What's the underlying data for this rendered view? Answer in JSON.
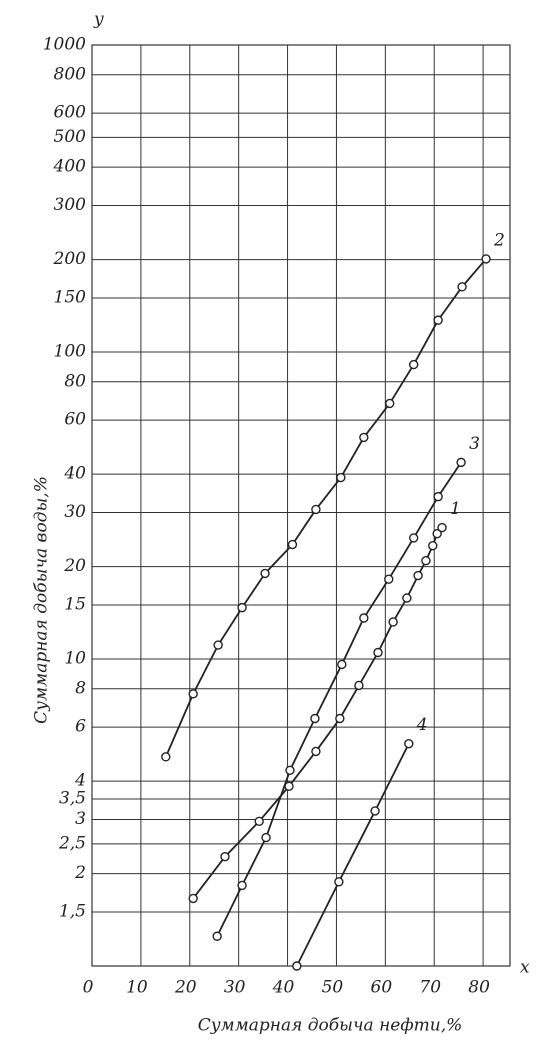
{
  "chart_data": {
    "type": "line",
    "y_scale": "log",
    "grid": true,
    "color": "#222222",
    "x_label": "Суммарная добыча нефти,%",
    "y_label": "Суммарная добыча воды,%",
    "x_axis_symbol": "x",
    "y_axis_symbol": "y",
    "xlim": [
      0,
      85.5
    ],
    "ylim": [
      1,
      1000
    ],
    "xticks": [
      0,
      10,
      20,
      30,
      40,
      50,
      60,
      70,
      80
    ],
    "yticks": [
      {
        "value": 1.5,
        "label": "1,5"
      },
      2,
      {
        "value": 2.5,
        "label": "2,5"
      },
      3,
      {
        "value": 3.5,
        "label": "3,5"
      },
      4,
      6,
      8,
      10,
      15,
      20,
      30,
      40,
      60,
      80,
      100,
      150,
      200,
      300,
      400,
      500,
      600,
      800,
      1000
    ],
    "series": [
      {
        "name": "1",
        "color": "#222222",
        "x": [
          20.7,
          27.2,
          34.2,
          40.3,
          45.8,
          50.7,
          54.6,
          58.5,
          61.6,
          64.4,
          66.7,
          68.3,
          69.7,
          70.6,
          71.6
        ],
        "values": [
          1.66,
          2.27,
          2.96,
          3.85,
          5.0,
          6.4,
          8.2,
          10.5,
          13.2,
          15.8,
          18.7,
          20.9,
          23.4,
          25.6,
          26.8
        ]
      },
      {
        "name": "2",
        "color": "#222222",
        "x": [
          15.1,
          20.7,
          25.8,
          30.7,
          35.4,
          41,
          45.8,
          50.9,
          55.6,
          60.9,
          65.8,
          70.8,
          75.7,
          80.6
        ],
        "values": [
          4.8,
          7.7,
          11.1,
          14.7,
          19,
          23.6,
          30.7,
          39,
          52.7,
          68,
          91,
          127,
          163,
          201
        ]
      },
      {
        "name": "3",
        "color": "#222222",
        "x": [
          25.6,
          30.7,
          35.6,
          40.5,
          45.6,
          51.1,
          55.6,
          60.7,
          65.8,
          70.8,
          75.5
        ],
        "values": [
          1.25,
          1.83,
          2.62,
          4.34,
          6.4,
          9.6,
          13.6,
          18.2,
          24.8,
          33.8,
          43.7
        ]
      },
      {
        "name": "4",
        "color": "#222222",
        "x": [
          41.9,
          50.5,
          57.9,
          64.8
        ],
        "values": [
          1.0,
          1.88,
          3.2,
          5.3
        ]
      }
    ]
  }
}
